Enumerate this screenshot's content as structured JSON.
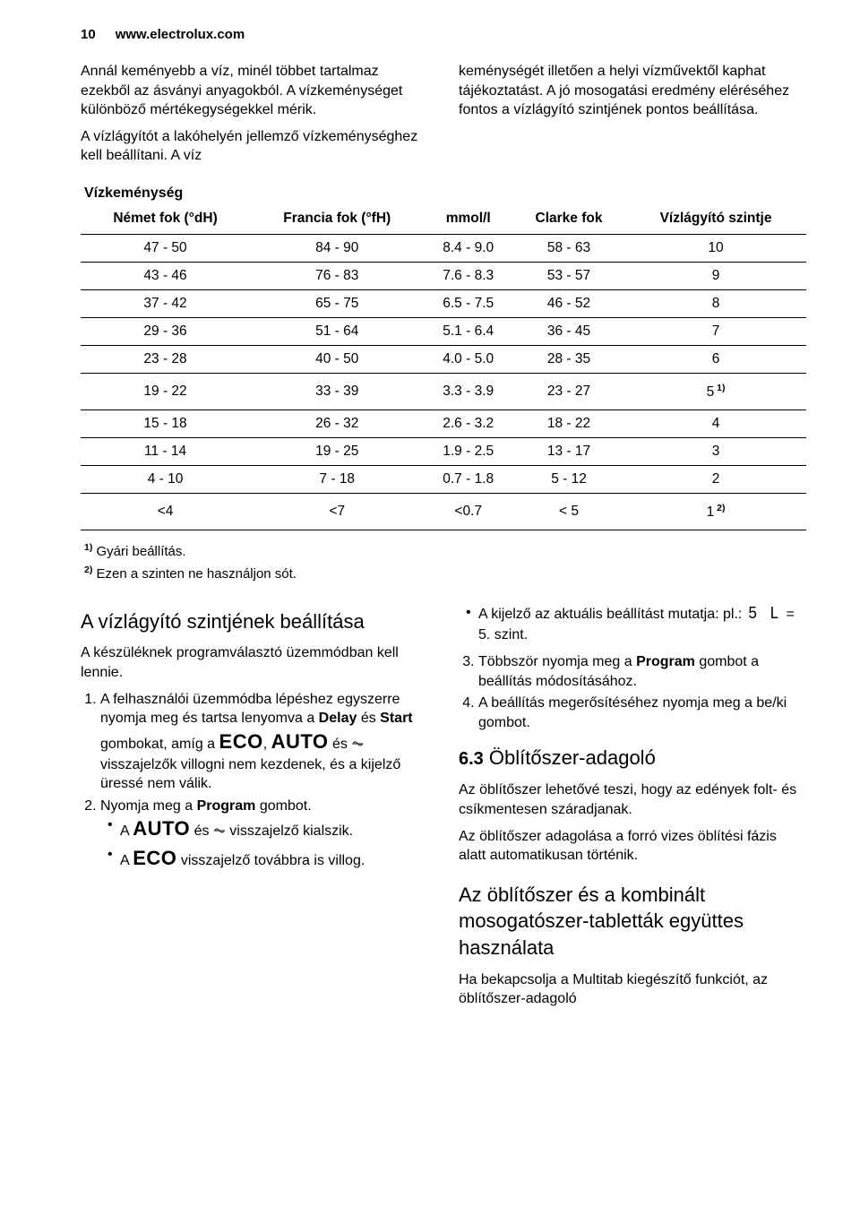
{
  "header": {
    "page_num": "10",
    "url": "www.electrolux.com"
  },
  "intro": {
    "left_p1": "Annál keményebb a víz, minél többet tartalmaz ezekből az ásványi anyagokból. A vízkeménységet különböző mértékegységekkel mérik.",
    "left_p2": "A vízlágyítót a lakóhelyén jellemző vízkeménységhez kell beállítani. A víz",
    "right_p1": "keménységét illetően a helyi vízművektől kaphat tájékoztatást. A jó mosogatási eredmény eléréséhez fontos a vízlágyító szintjének pontos beállítása."
  },
  "table": {
    "title": "Vízkeménység",
    "headers": {
      "h1": "Német fok (°dH)",
      "h2": "Francia fok (°fH)",
      "h3": "mmol/l",
      "h4": "Clarke fok",
      "h5": "Vízlágyító szintje"
    },
    "rows": [
      {
        "c1": "47 - 50",
        "c2": "84 - 90",
        "c3": "8.4 - 9.0",
        "c4": "58 - 63",
        "c5": "10",
        "sup": ""
      },
      {
        "c1": "43 - 46",
        "c2": "76 - 83",
        "c3": "7.6 - 8.3",
        "c4": "53 - 57",
        "c5": "9",
        "sup": ""
      },
      {
        "c1": "37 - 42",
        "c2": "65 - 75",
        "c3": "6.5 - 7.5",
        "c4": "46 - 52",
        "c5": "8",
        "sup": ""
      },
      {
        "c1": "29 - 36",
        "c2": "51 - 64",
        "c3": "5.1 - 6.4",
        "c4": "36 - 45",
        "c5": "7",
        "sup": ""
      },
      {
        "c1": "23 - 28",
        "c2": "40 - 50",
        "c3": "4.0 - 5.0",
        "c4": "28 - 35",
        "c5": "6",
        "sup": ""
      },
      {
        "c1": "19 - 22",
        "c2": "33 - 39",
        "c3": "3.3 - 3.9",
        "c4": "23 - 27",
        "c5": "5",
        "sup": " 1)"
      },
      {
        "c1": "15 - 18",
        "c2": "26 - 32",
        "c3": "2.6 - 3.2",
        "c4": "18 - 22",
        "c5": "4",
        "sup": ""
      },
      {
        "c1": "11 - 14",
        "c2": "19 - 25",
        "c3": "1.9 - 2.5",
        "c4": "13 - 17",
        "c5": "3",
        "sup": ""
      },
      {
        "c1": "4 - 10",
        "c2": "7 - 18",
        "c3": "0.7 - 1.8",
        "c4": "5 - 12",
        "c5": "2",
        "sup": ""
      },
      {
        "c1": "<4",
        "c2": "<7",
        "c3": "<0.7",
        "c4": "< 5",
        "c5": "1",
        "sup": " 2)"
      }
    ]
  },
  "footnotes": {
    "f1_sup": "1)",
    "f1": " Gyári beállítás.",
    "f2_sup": "2)",
    "f2": " Ezen a szinten ne használjon sót."
  },
  "left_col": {
    "heading": "A vízlágyító szintjének beállítása",
    "intro": "A készüléknek programválasztó üzemmódban kell lennie.",
    "li1_a": "A felhasználói üzemmódba lépéshez egyszerre nyomja meg és tartsa lenyomva a ",
    "li1_delay": "Delay",
    "li1_b": " és ",
    "li1_start": "Start",
    "li1_c": " gombokat, amíg a ",
    "li1_eco": "ECO",
    "li1_d": ", ",
    "li1_auto": "AUTO",
    "li1_e": " és ",
    "li1_icon": "⏦",
    "li1_f": " visszajelzők villogni nem kezdenek, és a kijelző üressé nem válik.",
    "li2_a": "Nyomja meg a ",
    "li2_prog": "Program",
    "li2_b": " gombot.",
    "li2b1_a": "A ",
    "li2b1_auto": "AUTO",
    "li2b1_b": " és ",
    "li2b1_icon": "⏦",
    "li2b1_c": " visszajelző kialszik.",
    "li2b2_a": "A ",
    "li2b2_eco": "ECO",
    "li2b2_b": " visszajelző továbbra is villog."
  },
  "right_col": {
    "bullet_a": "A kijelző az aktuális beállítást mutatja: pl.: ",
    "bullet_sl": "5 L",
    "bullet_b": " = 5. szint.",
    "li3_a": "Többször nyomja meg a ",
    "li3_prog": "Program",
    "li3_b": " gombot a beállítás módosításához.",
    "li4": "A beállítás megerősítéséhez nyomja meg a be/ki gombot.",
    "heading63_num": "6.3",
    "heading63": " Öblítőszer-adagoló",
    "p1": "Az öblítőszer lehetővé teszi, hogy az edények folt- és csíkmentesen száradjanak.",
    "p2": "Az öblítőszer adagolása a forró vizes öblítési fázis alatt automatikusan történik.",
    "heading_combo": "Az öblítőszer és a kombinált mosogatószer-tabletták együttes használata",
    "p3": "Ha bekapcsolja a Multitab kiegészítő funkciót, az öblítőszer-adagoló"
  }
}
